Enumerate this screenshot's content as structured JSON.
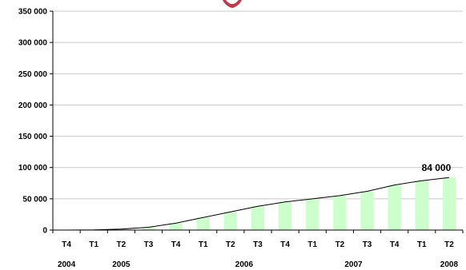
{
  "chart_data": {
    "type": "bar",
    "categories": [
      "T4",
      "T1",
      "T2",
      "T3",
      "T4",
      "T1",
      "T2",
      "T3",
      "T4",
      "T1",
      "T2",
      "T3",
      "T4",
      "T1",
      "T2"
    ],
    "years": [
      "2004",
      "2005",
      "2006",
      "2007",
      "2008"
    ],
    "values": [
      0,
      200,
      1500,
      4500,
      11000,
      20000,
      29000,
      38000,
      45000,
      50000,
      55000,
      62000,
      72000,
      79000,
      84000
    ],
    "trend": [
      0,
      200,
      1500,
      4500,
      11000,
      20000,
      29000,
      38000,
      45000,
      50000,
      55000,
      62000,
      72000,
      79000,
      84000
    ],
    "ylim": [
      0,
      350000
    ],
    "yticks": [
      "0",
      "50 000",
      "100 000",
      "150 000",
      "200 000",
      "250 000",
      "300 000",
      "350 000"
    ],
    "annotation": "84 000",
    "colors": {
      "bar": "#ccffcc",
      "line": "#000000",
      "logo": "#c0394b"
    },
    "grid": true
  }
}
